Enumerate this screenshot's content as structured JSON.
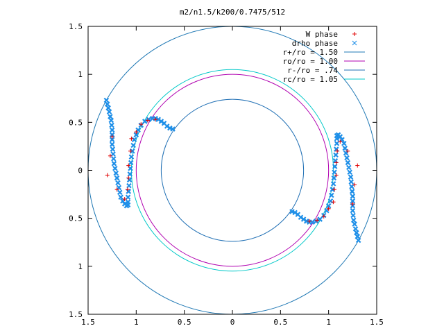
{
  "chart_data": {
    "type": "scatter",
    "title": "m2/n1.5/k200/0.7475/512",
    "xlim": [
      -1.5,
      1.5
    ],
    "ylim": [
      -1.5,
      1.5
    ],
    "grid": false,
    "legend_position": "top-right",
    "x_ticks": [
      {
        "value": -1.5,
        "label": "1.5"
      },
      {
        "value": -1.0,
        "label": "1"
      },
      {
        "value": -0.5,
        "label": "0.5"
      },
      {
        "value": 0.0,
        "label": "0"
      },
      {
        "value": 0.5,
        "label": "0.5"
      },
      {
        "value": 1.0,
        "label": "1"
      },
      {
        "value": 1.5,
        "label": "1.5"
      }
    ],
    "y_ticks": [
      {
        "value": 1.5,
        "label": "1.5"
      },
      {
        "value": 1.0,
        "label": "1"
      },
      {
        "value": 0.5,
        "label": "0.5"
      },
      {
        "value": 0.0,
        "label": "0"
      },
      {
        "value": -0.5,
        "label": "0.5"
      },
      {
        "value": -1.0,
        "label": "1"
      },
      {
        "value": -1.5,
        "label": "1.5"
      }
    ],
    "circles": [
      {
        "name": "r+/ro = 1.50",
        "r": 1.5,
        "color": "#1f78b4"
      },
      {
        "name": "ro/ro = 1.00",
        "r": 1.0,
        "color": "#b000b0"
      },
      {
        "name": "r-/ro = .74",
        "r": 0.74,
        "color": "#1f6fb4"
      },
      {
        "name": "rc/ro = 1.05",
        "r": 1.05,
        "color": "#00c8c8"
      }
    ],
    "series": [
      {
        "name": "W phase",
        "marker": "+",
        "color": "#e00000",
        "points": [
          [
            -1.05,
            0.33
          ],
          [
            -1.06,
            0.2
          ],
          [
            -1.08,
            0.05
          ],
          [
            -1.08,
            -0.08
          ],
          [
            -1.09,
            -0.2
          ],
          [
            -1.12,
            -0.3
          ],
          [
            -1.0,
            0.4
          ],
          [
            -0.95,
            0.48
          ],
          [
            -0.88,
            0.52
          ],
          [
            -0.8,
            0.53
          ],
          [
            -1.25,
            0.35
          ],
          [
            -1.27,
            0.15
          ],
          [
            -1.3,
            -0.05
          ],
          [
            -1.2,
            -0.2
          ],
          [
            1.05,
            -0.33
          ],
          [
            1.06,
            -0.2
          ],
          [
            1.08,
            -0.05
          ],
          [
            1.08,
            0.08
          ],
          [
            1.09,
            0.2
          ],
          [
            1.12,
            0.3
          ],
          [
            1.0,
            -0.4
          ],
          [
            0.95,
            -0.48
          ],
          [
            0.88,
            -0.52
          ],
          [
            0.8,
            -0.53
          ],
          [
            1.25,
            -0.35
          ],
          [
            1.27,
            -0.15
          ],
          [
            1.3,
            0.05
          ],
          [
            1.2,
            0.2
          ]
        ]
      },
      {
        "name": "drho phase",
        "marker": "x",
        "color": "#1e8fe8",
        "points": [
          [
            -1.31,
            0.73
          ],
          [
            -1.3,
            0.69
          ],
          [
            -1.29,
            0.65
          ],
          [
            -1.28,
            0.61
          ],
          [
            -1.27,
            0.56
          ],
          [
            -1.26,
            0.52
          ],
          [
            -1.255,
            0.47
          ],
          [
            -1.25,
            0.42
          ],
          [
            -1.25,
            0.37
          ],
          [
            -1.25,
            0.32
          ],
          [
            -1.25,
            0.27
          ],
          [
            -1.245,
            0.22
          ],
          [
            -1.24,
            0.17
          ],
          [
            -1.235,
            0.12
          ],
          [
            -1.23,
            0.07
          ],
          [
            -1.22,
            0.02
          ],
          [
            -1.21,
            -0.03
          ],
          [
            -1.2,
            -0.08
          ],
          [
            -1.19,
            -0.13
          ],
          [
            -1.18,
            -0.18
          ],
          [
            -1.17,
            -0.23
          ],
          [
            -1.16,
            -0.28
          ],
          [
            -1.14,
            -0.32
          ],
          [
            -1.12,
            -0.35
          ],
          [
            -1.1,
            -0.37
          ],
          [
            -1.085,
            -0.36
          ],
          [
            -1.085,
            -0.33
          ],
          [
            -1.085,
            -0.28
          ],
          [
            -1.08,
            -0.22
          ],
          [
            -1.075,
            -0.16
          ],
          [
            -1.07,
            -0.1
          ],
          [
            -1.065,
            -0.04
          ],
          [
            -1.06,
            0.02
          ],
          [
            -1.055,
            0.08
          ],
          [
            -1.05,
            0.14
          ],
          [
            -1.04,
            0.2
          ],
          [
            -1.03,
            0.26
          ],
          [
            -1.02,
            0.32
          ],
          [
            -1.0,
            0.37
          ],
          [
            -0.98,
            0.42
          ],
          [
            -0.95,
            0.47
          ],
          [
            -0.91,
            0.51
          ],
          [
            -0.87,
            0.53
          ],
          [
            -0.83,
            0.54
          ],
          [
            -0.8,
            0.54
          ],
          [
            -0.77,
            0.53
          ],
          [
            -0.74,
            0.51
          ],
          [
            -0.71,
            0.49
          ],
          [
            -0.68,
            0.46
          ],
          [
            -0.65,
            0.44
          ],
          [
            -0.62,
            0.43
          ],
          [
            1.31,
            -0.73
          ],
          [
            1.3,
            -0.69
          ],
          [
            1.29,
            -0.65
          ],
          [
            1.28,
            -0.61
          ],
          [
            1.27,
            -0.56
          ],
          [
            1.26,
            -0.52
          ],
          [
            1.255,
            -0.47
          ],
          [
            1.25,
            -0.42
          ],
          [
            1.25,
            -0.37
          ],
          [
            1.25,
            -0.32
          ],
          [
            1.25,
            -0.27
          ],
          [
            1.245,
            -0.22
          ],
          [
            1.24,
            -0.17
          ],
          [
            1.235,
            -0.12
          ],
          [
            1.23,
            -0.07
          ],
          [
            1.22,
            -0.02
          ],
          [
            1.21,
            0.03
          ],
          [
            1.2,
            0.08
          ],
          [
            1.19,
            0.13
          ],
          [
            1.18,
            0.18
          ],
          [
            1.17,
            0.23
          ],
          [
            1.16,
            0.28
          ],
          [
            1.14,
            0.32
          ],
          [
            1.12,
            0.35
          ],
          [
            1.1,
            0.37
          ],
          [
            1.085,
            0.36
          ],
          [
            1.085,
            0.33
          ],
          [
            1.085,
            0.28
          ],
          [
            1.08,
            0.22
          ],
          [
            1.075,
            0.16
          ],
          [
            1.07,
            0.1
          ],
          [
            1.065,
            0.04
          ],
          [
            1.06,
            -0.02
          ],
          [
            1.055,
            -0.08
          ],
          [
            1.05,
            -0.14
          ],
          [
            1.04,
            -0.2
          ],
          [
            1.03,
            -0.26
          ],
          [
            1.02,
            -0.32
          ],
          [
            1.0,
            -0.37
          ],
          [
            0.98,
            -0.42
          ],
          [
            0.95,
            -0.47
          ],
          [
            0.91,
            -0.51
          ],
          [
            0.87,
            -0.53
          ],
          [
            0.83,
            -0.54
          ],
          [
            0.8,
            -0.54
          ],
          [
            0.77,
            -0.53
          ],
          [
            0.74,
            -0.51
          ],
          [
            0.71,
            -0.49
          ],
          [
            0.68,
            -0.46
          ],
          [
            0.65,
            -0.44
          ],
          [
            0.62,
            -0.43
          ]
        ]
      }
    ]
  }
}
